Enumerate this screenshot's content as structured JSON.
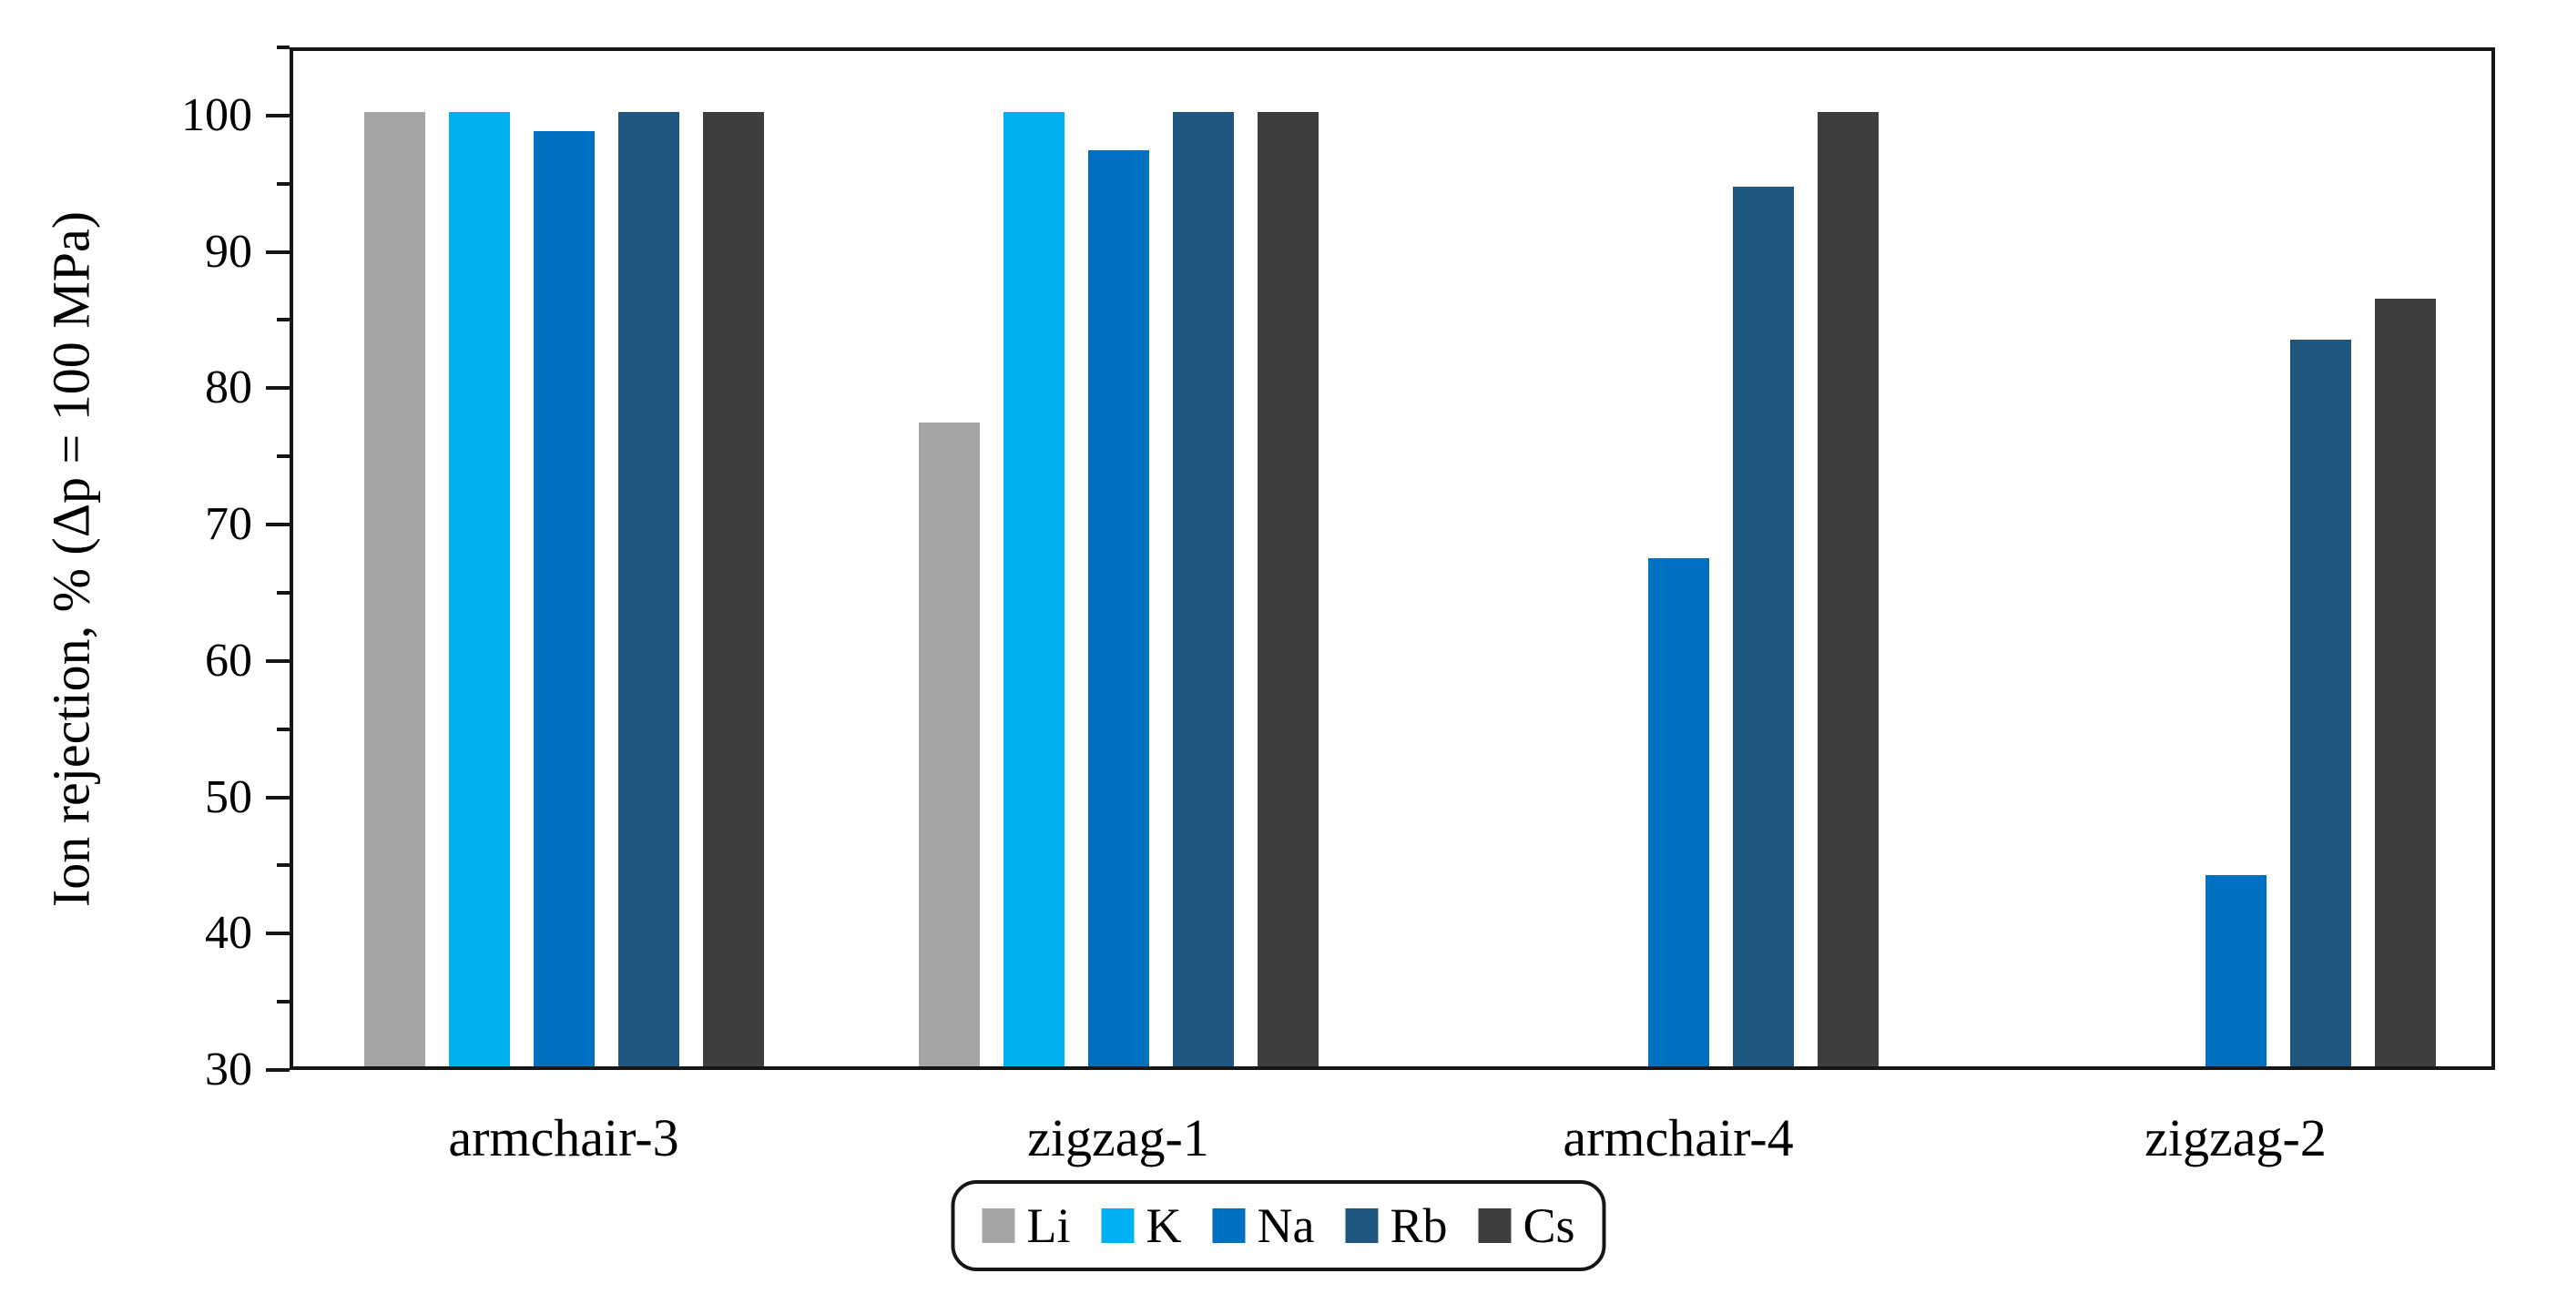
{
  "chart_data": {
    "type": "bar",
    "title": "",
    "xlabel": "",
    "ylabel": "Ion rejection, % (Δp = 100 MPa)",
    "categories": [
      "armchair-3",
      "zigzag-1",
      "armchair-4",
      "zigzag-2"
    ],
    "series": [
      {
        "name": "Li",
        "color": "#A5A5A5",
        "values": [
          100,
          77.2,
          null,
          null
        ]
      },
      {
        "name": "K",
        "color": "#00B0F0",
        "values": [
          100,
          100,
          null,
          null
        ]
      },
      {
        "name": "Na",
        "color": "#0070C0",
        "values": [
          98.6,
          97.2,
          67.3,
          44.0
        ]
      },
      {
        "name": "Rb",
        "color": "#1F5680",
        "values": [
          100,
          100,
          94.5,
          83.3
        ]
      },
      {
        "name": "Cs",
        "color": "#3F3E3C",
        "values": [
          100,
          100,
          100,
          86.3
        ]
      }
    ],
    "ylim": [
      30,
      105
    ],
    "yticks": [
      30,
      40,
      50,
      60,
      70,
      80,
      90,
      100
    ],
    "minor_tick_step": 5,
    "grid": false,
    "legend_position": "bottom",
    "axis_color": "#161616"
  }
}
